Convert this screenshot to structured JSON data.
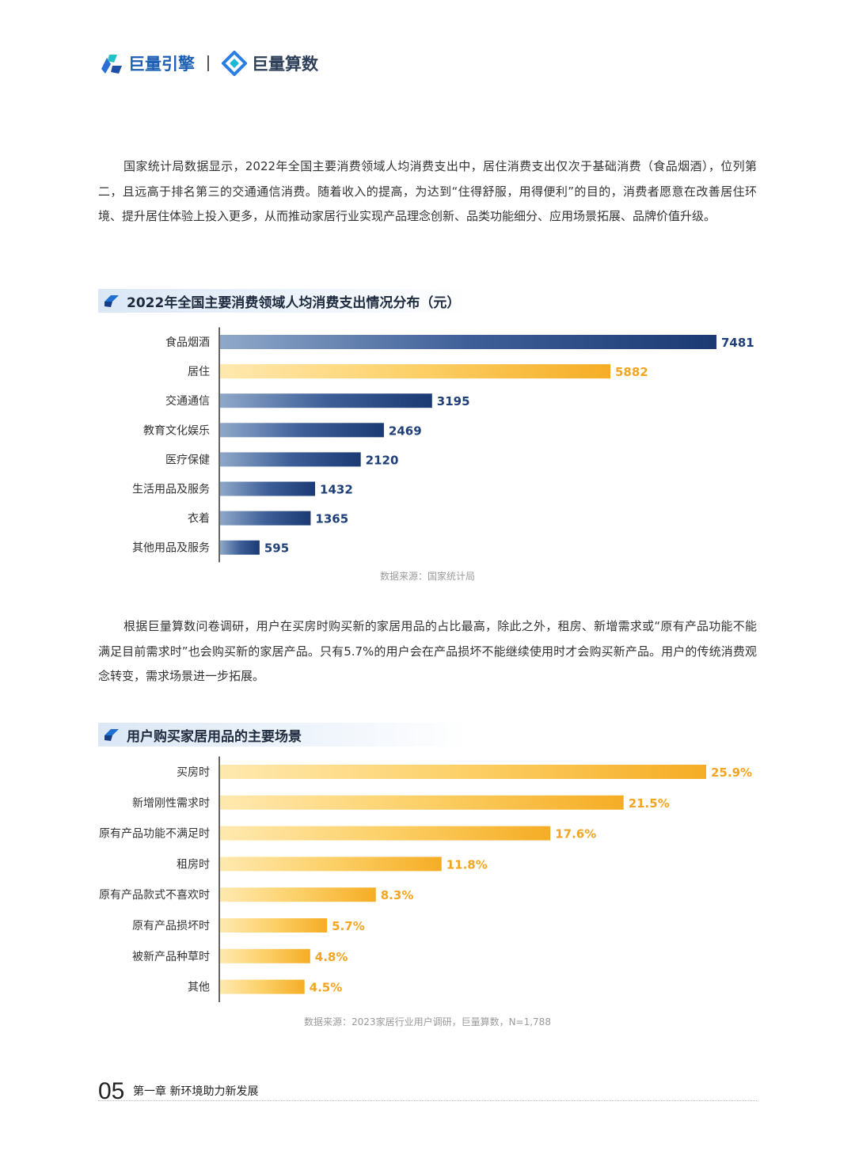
{
  "header": {
    "brand1": "巨量引擎",
    "brand2": "巨量算数"
  },
  "para1": "国家统计局数据显示，2022年全国主要消费领域人均消费支出中，居住消费支出仅次于基础消费（食品烟酒），位列第二，且远高于排名第三的交通通信消费。随着收入的提高，为达到“住得舒服，用得便利”的目的，消费者愿意在改善居住环境、提升居住体验上投入更多，从而推动家居行业实现产品理念创新、品类功能细分、应用场景拓展、品牌价值升级。",
  "para2": "根据巨量算数问卷调研，用户在买房时购买新的家居用品的占比最高，除此之外，租房、新增需求或“原有产品功能不能满足目前需求时”也会购买新的家居产品。只有5.7%的用户会在产品损坏不能继续使用时才会购买新产品。用户的传统消费观念转变，需求场景进一步拓展。",
  "chart1_title": "2022年全国主要消费领域人均消费支出情况分布（元）",
  "chart1_source": "数据来源：国家统计局",
  "chart2_title": "用户购买家居用品的主要场景",
  "chart2_source": "数据来源：2023家居行业用户调研，巨量算数，N=1,788",
  "footer": {
    "page": "05",
    "chapter": "第一章  新环境助力新发展"
  },
  "colors": {
    "navy": "#1f3f78",
    "gold": "#f5b02e"
  },
  "chart_data": [
    {
      "type": "bar",
      "orientation": "horizontal",
      "title": "2022年全国主要消费领域人均消费支出情况分布（元）",
      "categories": [
        "食品烟酒",
        "居住",
        "交通通信",
        "教育文化娱乐",
        "医疗保健",
        "生活用品及服务",
        "衣着",
        "其他用品及服务"
      ],
      "values": [
        7481,
        5882,
        3195,
        2469,
        2120,
        1432,
        1365,
        595
      ],
      "labels": [
        "7481",
        "5882",
        "3195",
        "2469",
        "2120",
        "1432",
        "1365",
        "595"
      ],
      "highlight": [
        1
      ],
      "xlim": [
        0,
        7481
      ]
    },
    {
      "type": "bar",
      "orientation": "horizontal",
      "title": "用户购买家居用品的主要场景",
      "categories": [
        "买房时",
        "新增刚性需求时",
        "原有产品功能不满足时",
        "租房时",
        "原有产品款式不喜欢时",
        "原有产品损坏时",
        "被新产品种草时",
        "其他"
      ],
      "values": [
        25.9,
        21.5,
        17.6,
        11.8,
        8.3,
        5.7,
        4.8,
        4.5
      ],
      "labels": [
        "25.9%",
        "21.5%",
        "17.6%",
        "11.8%",
        "8.3%",
        "5.7%",
        "4.8%",
        "4.5%"
      ],
      "xlim": [
        0,
        25.9
      ]
    }
  ]
}
